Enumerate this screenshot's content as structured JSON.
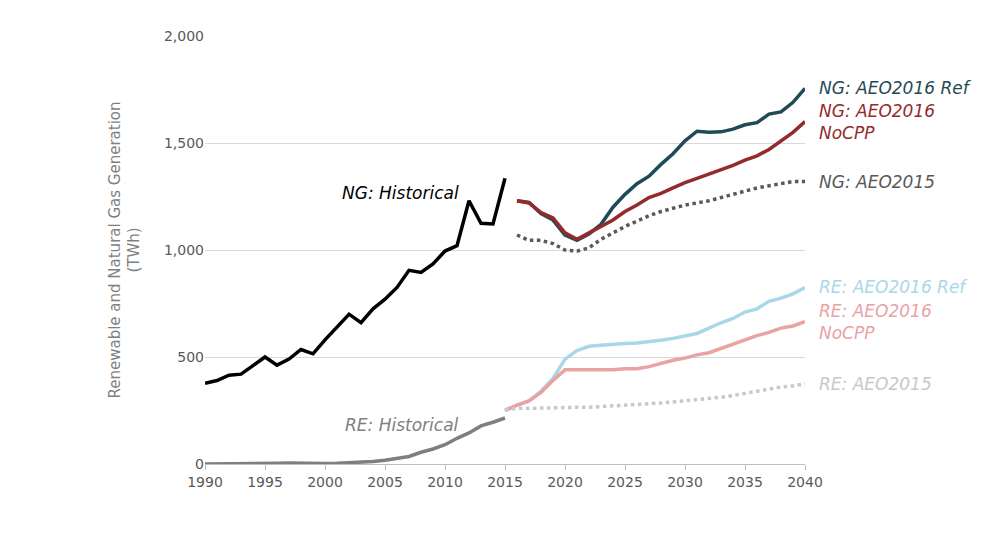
{
  "chart_data": {
    "type": "line",
    "y_label": "Renewable and Natural Gas Generation (TWh)",
    "x": [
      1990,
      1991,
      1992,
      1993,
      1994,
      1995,
      1996,
      1997,
      1998,
      1999,
      2000,
      2001,
      2002,
      2003,
      2004,
      2005,
      2006,
      2007,
      2008,
      2009,
      2010,
      2011,
      2012,
      2013,
      2014,
      2015,
      2016,
      2017,
      2018,
      2019,
      2020,
      2021,
      2022,
      2023,
      2024,
      2025,
      2026,
      2027,
      2028,
      2029,
      2030,
      2031,
      2032,
      2033,
      2034,
      2035,
      2036,
      2037,
      2038,
      2039,
      2040
    ],
    "xlim": [
      1990,
      2040
    ],
    "xticks": [
      1990,
      1995,
      2000,
      2005,
      2010,
      2015,
      2020,
      2025,
      2030,
      2035,
      2040
    ],
    "ylim": [
      0,
      2000
    ],
    "yticks": [
      0,
      500,
      {
        "value": 1000,
        "label": "1,000"
      },
      {
        "value": 1500,
        "label": "1,500"
      },
      {
        "value": 2000,
        "label": "2,000"
      }
    ],
    "grid": true,
    "series": [
      {
        "name": "NG: Historical",
        "color": "#000000",
        "line_style": "solid",
        "values": [
          377,
          390,
          415,
          420,
          460,
          500,
          462,
          490,
          535,
          515,
          580,
          640,
          700,
          660,
          725,
          770,
          825,
          905,
          895,
          935,
          995,
          1020,
          1230,
          1125,
          1122,
          1335,
          null,
          null,
          null,
          null,
          null,
          null,
          null,
          null,
          null,
          null,
          null,
          null,
          null,
          null,
          null,
          null,
          null,
          null,
          null,
          null,
          null,
          null,
          null,
          null,
          null
        ]
      },
      {
        "name": "NG: AEO2016 Ref",
        "color": "#1f4b55",
        "line_style": "solid",
        "values": [
          null,
          null,
          null,
          null,
          null,
          null,
          null,
          null,
          null,
          null,
          null,
          null,
          null,
          null,
          null,
          null,
          null,
          null,
          null,
          null,
          null,
          null,
          null,
          null,
          null,
          null,
          1230,
          1222,
          1170,
          1140,
          1070,
          1045,
          1075,
          1120,
          1200,
          1260,
          1310,
          1345,
          1400,
          1450,
          1510,
          1555,
          1550,
          1552,
          1565,
          1585,
          1595,
          1635,
          1645,
          1690,
          1755
        ]
      },
      {
        "name": "NG: AEO2016 NoCPP",
        "color": "#952a2a",
        "line_style": "solid",
        "values": [
          null,
          null,
          null,
          null,
          null,
          null,
          null,
          null,
          null,
          null,
          null,
          null,
          null,
          null,
          null,
          null,
          null,
          null,
          null,
          null,
          null,
          null,
          null,
          null,
          null,
          null,
          1230,
          1220,
          1175,
          1150,
          1080,
          1050,
          1080,
          1110,
          1140,
          1180,
          1210,
          1245,
          1265,
          1290,
          1315,
          1335,
          1355,
          1375,
          1395,
          1420,
          1440,
          1470,
          1510,
          1550,
          1600
        ]
      },
      {
        "name": "NG: AEO2015",
        "color": "#595959",
        "line_style": "dotted",
        "values": [
          null,
          null,
          null,
          null,
          null,
          null,
          null,
          null,
          null,
          null,
          null,
          null,
          null,
          null,
          null,
          null,
          null,
          null,
          null,
          null,
          null,
          null,
          null,
          null,
          null,
          null,
          1070,
          1045,
          1045,
          1030,
          1000,
          995,
          1010,
          1050,
          1080,
          1110,
          1135,
          1160,
          1180,
          1195,
          1210,
          1220,
          1230,
          1245,
          1260,
          1275,
          1290,
          1300,
          1310,
          1320,
          1320
        ]
      },
      {
        "name": "RE: Historical",
        "color": "#7f7f7f",
        "line_style": "solid",
        "values": [
          0,
          0,
          0,
          0,
          2,
          3,
          4,
          5,
          3,
          2,
          2,
          3,
          5,
          10,
          12,
          18,
          25,
          35,
          55,
          70,
          90,
          120,
          145,
          178,
          195,
          215,
          null,
          null,
          null,
          null,
          null,
          null,
          null,
          null,
          null,
          null,
          null,
          null,
          null,
          null,
          null,
          null,
          null,
          null,
          null,
          null,
          null,
          null,
          null,
          null,
          null
        ]
      },
      {
        "name": "RE: AEO2016 Ref",
        "color": "#a8d8e8",
        "line_style": "solid",
        "values": [
          null,
          null,
          null,
          null,
          null,
          null,
          null,
          null,
          null,
          null,
          null,
          null,
          null,
          null,
          null,
          null,
          null,
          null,
          null,
          null,
          null,
          null,
          null,
          null,
          null,
          250,
          275,
          295,
          340,
          400,
          490,
          530,
          550,
          555,
          560,
          563,
          565,
          570,
          578,
          587,
          597,
          610,
          635,
          660,
          680,
          710,
          725,
          760,
          775,
          795,
          825
        ]
      },
      {
        "name": "RE: AEO2016 NoCPP",
        "color": "#e9a3a3",
        "line_style": "solid",
        "values": [
          null,
          null,
          null,
          null,
          null,
          null,
          null,
          null,
          null,
          null,
          null,
          null,
          null,
          null,
          null,
          null,
          null,
          null,
          null,
          null,
          null,
          null,
          null,
          null,
          null,
          250,
          275,
          295,
          335,
          390,
          440,
          440,
          440,
          440,
          440,
          445,
          445,
          455,
          470,
          485,
          495,
          510,
          520,
          540,
          560,
          580,
          600,
          615,
          635,
          645,
          665
        ]
      },
      {
        "name": "RE: AEO2015",
        "color": "#c8c8c8",
        "line_style": "dotted",
        "values": [
          null,
          null,
          null,
          null,
          null,
          null,
          null,
          null,
          null,
          null,
          null,
          null,
          null,
          null,
          null,
          null,
          null,
          null,
          null,
          null,
          null,
          null,
          null,
          null,
          null,
          255,
          260,
          260,
          262,
          265,
          265,
          265,
          265,
          268,
          270,
          272,
          275,
          280,
          285,
          290,
          295,
          300,
          305,
          312,
          320,
          330,
          340,
          350,
          360,
          365,
          375
        ]
      }
    ]
  }
}
